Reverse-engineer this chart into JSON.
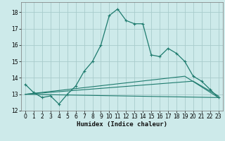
{
  "title": "",
  "xlabel": "Humidex (Indice chaleur)",
  "ylabel": "",
  "background_color": "#cdeaea",
  "grid_color": "#a8cccc",
  "line_color": "#1e7b6e",
  "xlim": [
    -0.5,
    23.5
  ],
  "ylim": [
    12.0,
    18.6
  ],
  "yticks": [
    12,
    13,
    14,
    15,
    16,
    17,
    18
  ],
  "xticks": [
    0,
    1,
    2,
    3,
    4,
    5,
    6,
    7,
    8,
    9,
    10,
    11,
    12,
    13,
    14,
    15,
    16,
    17,
    18,
    19,
    20,
    21,
    22,
    23
  ],
  "series1_x": [
    0,
    1,
    2,
    3,
    4,
    5,
    6,
    7,
    8,
    9,
    10,
    11,
    12,
    13,
    14,
    15,
    16,
    17,
    18,
    19,
    20,
    21,
    22,
    23
  ],
  "series1_y": [
    13.6,
    13.1,
    12.8,
    12.9,
    12.4,
    13.0,
    13.5,
    14.4,
    15.0,
    16.0,
    17.8,
    18.2,
    17.5,
    17.3,
    17.3,
    15.4,
    15.3,
    15.8,
    15.5,
    15.0,
    14.1,
    13.8,
    13.3,
    12.8
  ],
  "series2_x": [
    0,
    23
  ],
  "series2_y": [
    13.0,
    12.8
  ],
  "series3_x": [
    0,
    20,
    23
  ],
  "series3_y": [
    13.0,
    13.8,
    12.9
  ],
  "series4_x": [
    0,
    19,
    23
  ],
  "series4_y": [
    13.0,
    14.1,
    12.8
  ],
  "xlabel_fontsize": 6.5,
  "tick_fontsize": 5.5
}
